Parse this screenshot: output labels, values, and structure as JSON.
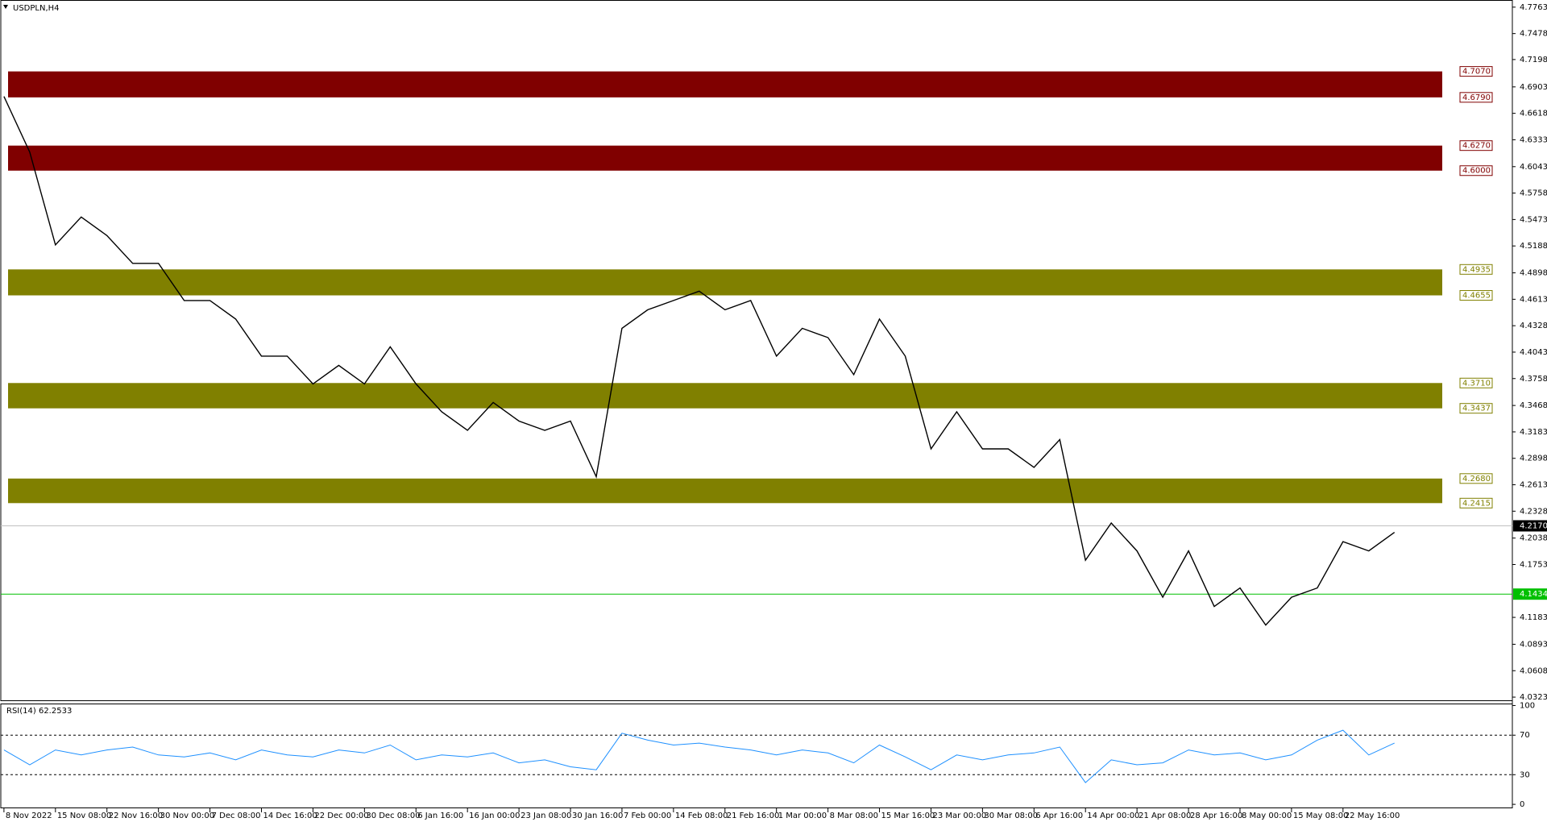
{
  "chart_data": [
    {
      "type": "line",
      "title": "USDPLN,H4",
      "categories": [
        "8 Nov 2022",
        null,
        "15 Nov 08:00",
        null,
        "22 Nov 16:00",
        null,
        "30 Nov 00:00",
        null,
        "7 Dec 08:00",
        null,
        "14 Dec 16:00",
        null,
        "22 Dec 00:00",
        null,
        "30 Dec 08:00",
        null,
        "6 Jan 16:00",
        null,
        "16 Jan 00:00",
        null,
        "23 Jan 08:00",
        null,
        "30 Jan 16:00",
        null,
        "7 Feb 00:00",
        null,
        "14 Feb 08:00",
        null,
        "21 Feb 16:00",
        null,
        "1 Mar 00:00",
        null,
        "8 Mar 08:00",
        null,
        "15 Mar 16:00",
        null,
        "23 Mar 00:00",
        null,
        "30 Mar 08:00",
        null,
        "6 Apr 16:00",
        null,
        "14 Apr 00:00",
        null,
        "21 Apr 08:00",
        null,
        "28 Apr 16:00",
        null,
        "8 May 00:00",
        null,
        "15 May 08:00",
        null,
        "22 May 16:00",
        null,
        null
      ],
      "series": [
        {
          "color": "#000000",
          "values": [
            4.68,
            4.62,
            4.52,
            4.55,
            4.53,
            4.5,
            4.5,
            4.46,
            4.46,
            4.44,
            4.4,
            4.4,
            4.37,
            4.39,
            4.37,
            4.41,
            4.37,
            4.34,
            4.32,
            4.35,
            4.33,
            4.32,
            4.33,
            4.27,
            4.43,
            4.45,
            4.46,
            4.47,
            4.45,
            4.46,
            4.4,
            4.43,
            4.42,
            4.38,
            4.44,
            4.4,
            4.3,
            4.34,
            4.3,
            4.3,
            4.28,
            4.31,
            4.18,
            4.22,
            4.19,
            4.14,
            4.19,
            4.13,
            4.15,
            4.11,
            4.14,
            4.15,
            4.2,
            4.19,
            4.21
          ]
        }
      ],
      "ylim": [
        4.028,
        4.784
      ],
      "yticks": [
        4.7763,
        4.7478,
        4.7198,
        4.6903,
        4.6618,
        4.6333,
        4.6043,
        4.5758,
        4.5473,
        4.5188,
        4.4898,
        4.4613,
        4.4328,
        4.4043,
        4.3758,
        4.3468,
        4.3183,
        4.2898,
        4.2613,
        4.2328,
        4.2038,
        4.1753,
        4.1183,
        4.0893,
        4.0608,
        4.0323
      ],
      "zones": [
        {
          "color": "#800000",
          "values": [
            4.707,
            4.679
          ],
          "value_labels": [
            "4.7070",
            "4.6790"
          ]
        },
        {
          "color": "#800000",
          "values": [
            4.627,
            4.6
          ],
          "value_labels": [
            "4.6270",
            "4.6000"
          ]
        },
        {
          "color": "#808000",
          "values": [
            4.4935,
            4.4655
          ],
          "value_labels": [
            "4.4935",
            "4.4655"
          ]
        },
        {
          "color": "#808000",
          "values": [
            4.371,
            4.3437
          ],
          "value_labels": [
            "4.3710",
            "4.3437"
          ]
        },
        {
          "color": "#808000",
          "values": [
            4.268,
            4.2415
          ],
          "value_labels": [
            "4.2680",
            "4.2415"
          ]
        }
      ],
      "price_lines": [
        {
          "color": "#c0c0c0",
          "tag_color": "#000000",
          "value": 4.217,
          "value_label": "4.2170"
        },
        {
          "color": "#00c000",
          "tag_color": "#00c000",
          "value": 4.1434
        }
      ]
    },
    {
      "type": "line",
      "title": "RSI(14) 62.2533",
      "series": [
        {
          "color": "#1e90ff",
          "values": [
            55,
            40,
            55,
            50,
            55,
            58,
            50,
            48,
            52,
            45,
            55,
            50,
            48,
            55,
            52,
            60,
            45,
            50,
            48,
            52,
            42,
            45,
            38,
            35,
            72,
            65,
            60,
            62,
            58,
            55,
            50,
            55,
            52,
            42,
            60,
            48,
            35,
            50,
            45,
            50,
            52,
            58,
            22,
            45,
            40,
            42,
            55,
            50,
            52,
            45,
            50,
            65,
            75,
            50,
            62
          ]
        }
      ],
      "ylim": [
        -4,
        102
      ],
      "yticks": [
        100,
        70,
        30,
        0
      ]
    }
  ]
}
